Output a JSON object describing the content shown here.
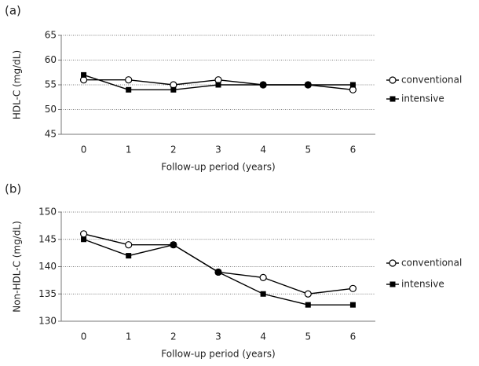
{
  "chart_data": [
    {
      "type": "line",
      "panel_label": "(a)",
      "y_label": "HDL-C (mg/dL)",
      "x_label": "Follow-up period (years)",
      "categories": [
        "0",
        "1",
        "2",
        "3",
        "4",
        "5",
        "6"
      ],
      "ylim": [
        45,
        65
      ],
      "yticks": [
        45,
        50,
        55,
        60,
        65
      ],
      "grid": true,
      "legend": "right",
      "series": [
        {
          "name": "conventional",
          "color": "#000000",
          "marker": "circle",
          "values": [
            56,
            56,
            55,
            56,
            55,
            55,
            54
          ]
        },
        {
          "name": "intensive",
          "color": "#000000",
          "marker": "square",
          "values": [
            57,
            54,
            54,
            55,
            55,
            55,
            55
          ]
        }
      ]
    },
    {
      "type": "line",
      "panel_label": "(b)",
      "y_label": "Non-HDL-C (mg/dL)",
      "x_label": "Follow-up period (years)",
      "categories": [
        "0",
        "1",
        "2",
        "3",
        "4",
        "5",
        "6"
      ],
      "ylim": [
        130,
        150
      ],
      "yticks": [
        130,
        135,
        140,
        145,
        150
      ],
      "grid": true,
      "legend": "right",
      "series": [
        {
          "name": "conventional",
          "color": "#000000",
          "marker": "circle",
          "values": [
            146,
            144,
            144,
            139,
            138,
            135,
            136
          ]
        },
        {
          "name": "intensive",
          "color": "#000000",
          "marker": "square",
          "values": [
            145,
            142,
            144,
            139,
            135,
            133,
            133
          ]
        }
      ]
    }
  ]
}
